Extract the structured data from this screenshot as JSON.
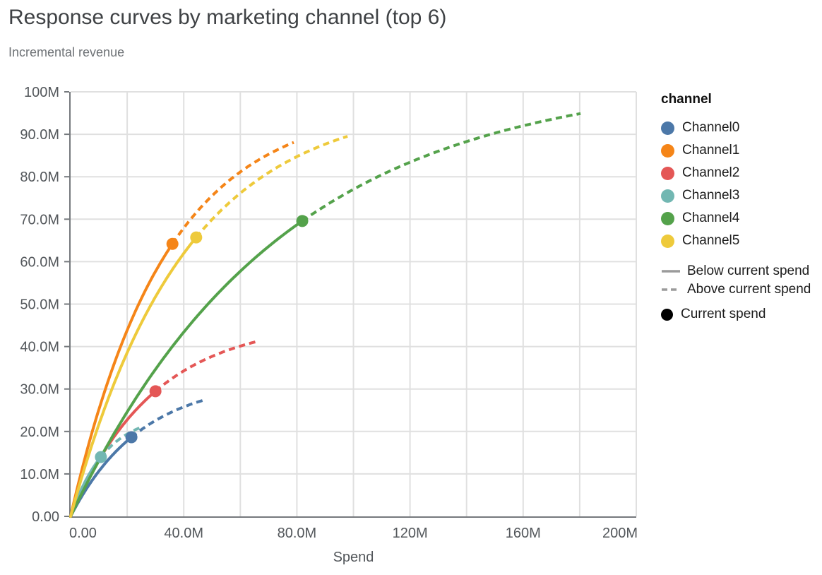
{
  "title": "Response curves by marketing channel (top 6)",
  "subtitle": "Incremental revenue",
  "chart_data": {
    "type": "line",
    "title": "Response curves by marketing channel (top 6)",
    "subtitle": "Incremental revenue",
    "xlabel": "Spend",
    "ylabel": "Incremental revenue",
    "units": "millions (M)",
    "xlim": [
      0,
      200
    ],
    "ylim": [
      0,
      100
    ],
    "x_tick_values": [
      0,
      40,
      80,
      120,
      160,
      200
    ],
    "x_tick_labels": [
      "0.00",
      "40.0M",
      "80.0M",
      "120M",
      "160M",
      "200M"
    ],
    "y_tick_values": [
      0,
      10,
      20,
      30,
      40,
      50,
      60,
      70,
      80,
      90,
      100
    ],
    "y_tick_labels": [
      "0.00",
      "10.0M",
      "20.0M",
      "30.0M",
      "40.0M",
      "50.0M",
      "60.0M",
      "70.0M",
      "80.0M",
      "90.0M",
      "100M"
    ],
    "x_grid_step": 20,
    "y_grid_step": 10,
    "grid": true,
    "legend_position": "right",
    "curve_model": "incremental_revenue = a * (1 - exp(-b * spend)); drawn solid from 0 to current_spend, dashed from current_spend to max_spend; dot marks current spend",
    "series": [
      {
        "name": "Channel0",
        "color": "#4c78a8",
        "sat_a": 32.3,
        "sat_b": 0.04,
        "current_spend": 21.5,
        "current_revenue": 18.6,
        "max_spend": 46.7,
        "max_revenue": 27.3
      },
      {
        "name": "Channel1",
        "color": "#f58518",
        "sat_a": 97.2,
        "sat_b": 0.03,
        "current_spend": 36.0,
        "current_revenue": 64.2,
        "max_spend": 78.9,
        "max_revenue": 88.0
      },
      {
        "name": "Channel2",
        "color": "#e45756",
        "sat_a": 46.1,
        "sat_b": 0.034,
        "current_spend": 30.0,
        "current_revenue": 29.5,
        "max_spend": 66.2,
        "max_revenue": 41.3
      },
      {
        "name": "Channel3",
        "color": "#72b7b2",
        "sat_a": 24.3,
        "sat_b": 0.08,
        "current_spend": 10.7,
        "current_revenue": 14.0,
        "max_spend": 24.7,
        "max_revenue": 21.0
      },
      {
        "name": "Channel4",
        "color": "#54a24b",
        "sat_a": 104.0,
        "sat_b": 0.0135,
        "current_spend": 81.9,
        "current_revenue": 69.6,
        "max_spend": 180.3,
        "max_revenue": 94.9
      },
      {
        "name": "Channel5",
        "color": "#eeca3b",
        "sat_a": 98.0,
        "sat_b": 0.025,
        "current_spend": 44.4,
        "current_revenue": 65.7,
        "max_spend": 97.9,
        "max_revenue": 89.5
      }
    ]
  },
  "legend": {
    "title": "channel",
    "channels": [
      {
        "label": "Channel0",
        "color": "#4c78a8"
      },
      {
        "label": "Channel1",
        "color": "#f58518"
      },
      {
        "label": "Channel2",
        "color": "#e45756"
      },
      {
        "label": "Channel3",
        "color": "#72b7b2"
      },
      {
        "label": "Channel4",
        "color": "#54a24b"
      },
      {
        "label": "Channel5",
        "color": "#eeca3b"
      }
    ],
    "line_styles": [
      {
        "label": "Below current spend",
        "style": "solid"
      },
      {
        "label": "Above current spend",
        "style": "dashed"
      }
    ],
    "point_label": "Current spend",
    "line_color": "#9b9b9b",
    "point_color": "#000000"
  },
  "colors": {
    "title_text": "#3f4245",
    "subtitle_text": "#6e7276",
    "tick_text": "#53575b",
    "grid": "#e0e0e0",
    "axis": "#75797d",
    "legend_text": "#1c1c1c"
  }
}
